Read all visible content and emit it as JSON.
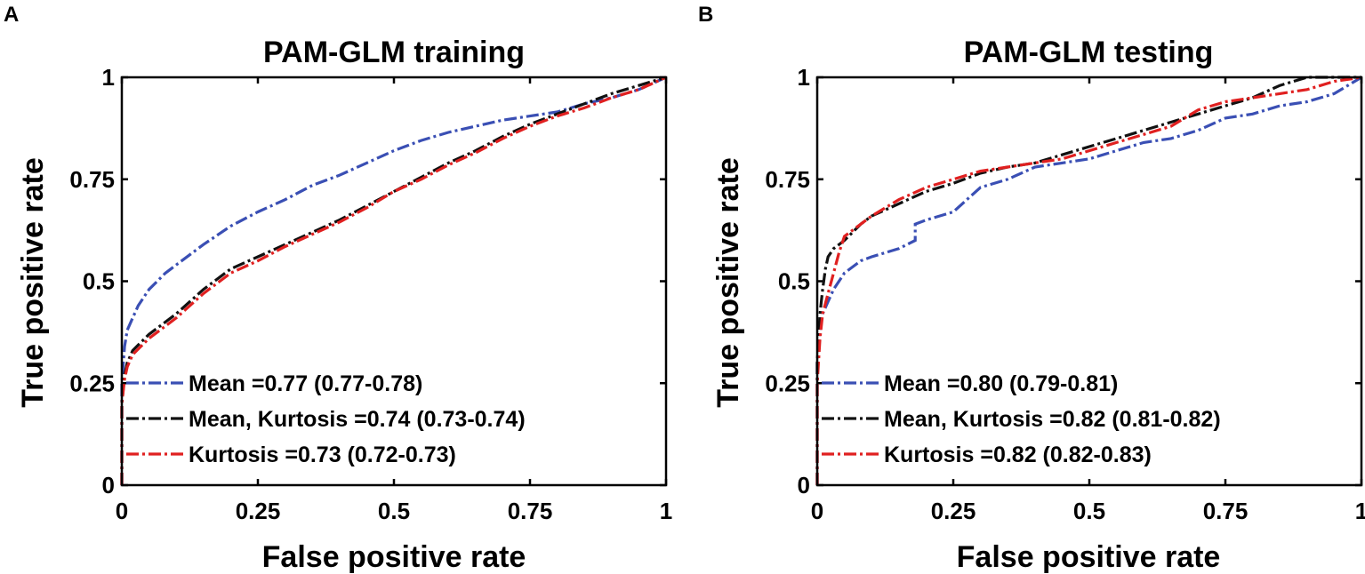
{
  "chart_data": [
    {
      "type": "line",
      "panel": "A",
      "title": "PAM-GLM training",
      "xlabel": "False positive rate",
      "ylabel": "True positive rate",
      "xlim": [
        0,
        1
      ],
      "ylim": [
        0,
        1
      ],
      "xticks": [
        0,
        0.25,
        0.5,
        0.75,
        1
      ],
      "xtick_labels": [
        "0",
        "0.25",
        "0.5",
        "0.75",
        "1"
      ],
      "yticks": [
        0,
        0.25,
        0.5,
        0.75,
        1
      ],
      "ytick_labels": [
        "0",
        "0.25",
        "0.5",
        "0.75",
        "1"
      ],
      "legend_position": "lower-left",
      "series": [
        {
          "name": "Mean =0.77 (0.77-0.78)",
          "color": "#3a4fb4",
          "x": [
            0,
            0,
            0.005,
            0.01,
            0.02,
            0.03,
            0.05,
            0.08,
            0.1,
            0.15,
            0.2,
            0.25,
            0.3,
            0.35,
            0.4,
            0.45,
            0.5,
            0.55,
            0.6,
            0.65,
            0.7,
            0.75,
            0.8,
            0.85,
            0.9,
            0.95,
            1
          ],
          "y": [
            0,
            0.25,
            0.34,
            0.38,
            0.41,
            0.44,
            0.48,
            0.52,
            0.54,
            0.59,
            0.635,
            0.67,
            0.7,
            0.735,
            0.76,
            0.79,
            0.82,
            0.845,
            0.865,
            0.88,
            0.895,
            0.905,
            0.915,
            0.935,
            0.95,
            0.97,
            1
          ]
        },
        {
          "name": "Mean, Kurtosis =0.74 (0.73-0.74)",
          "color": "#111111",
          "x": [
            0,
            0,
            0.005,
            0.01,
            0.02,
            0.05,
            0.08,
            0.1,
            0.15,
            0.2,
            0.25,
            0.3,
            0.35,
            0.4,
            0.45,
            0.5,
            0.55,
            0.6,
            0.65,
            0.7,
            0.75,
            0.8,
            0.85,
            0.9,
            0.95,
            1
          ],
          "y": [
            0,
            0.2,
            0.27,
            0.3,
            0.33,
            0.37,
            0.4,
            0.42,
            0.48,
            0.53,
            0.56,
            0.59,
            0.62,
            0.65,
            0.685,
            0.72,
            0.755,
            0.79,
            0.82,
            0.855,
            0.885,
            0.91,
            0.935,
            0.96,
            0.98,
            1
          ]
        },
        {
          "name": "Kurtosis =0.73 (0.72-0.73)",
          "color": "#e02020",
          "x": [
            0,
            0,
            0.005,
            0.01,
            0.02,
            0.05,
            0.08,
            0.1,
            0.15,
            0.2,
            0.25,
            0.3,
            0.35,
            0.4,
            0.45,
            0.5,
            0.55,
            0.6,
            0.65,
            0.7,
            0.75,
            0.8,
            0.85,
            0.9,
            0.95,
            1
          ],
          "y": [
            0,
            0.2,
            0.26,
            0.29,
            0.32,
            0.36,
            0.39,
            0.41,
            0.47,
            0.52,
            0.55,
            0.585,
            0.615,
            0.645,
            0.68,
            0.72,
            0.75,
            0.785,
            0.815,
            0.85,
            0.88,
            0.905,
            0.925,
            0.95,
            0.97,
            1
          ]
        }
      ]
    },
    {
      "type": "line",
      "panel": "B",
      "title": "PAM-GLM testing",
      "xlabel": "False positive rate",
      "ylabel": "True positive rate",
      "xlim": [
        0,
        1
      ],
      "ylim": [
        0,
        1
      ],
      "xticks": [
        0,
        0.25,
        0.5,
        0.75,
        1
      ],
      "xtick_labels": [
        "0",
        "0.25",
        "0.5",
        "0.75",
        "1"
      ],
      "yticks": [
        0,
        0.25,
        0.5,
        0.75,
        1
      ],
      "ytick_labels": [
        "0",
        "0.25",
        "0.5",
        "0.75",
        "1"
      ],
      "legend_position": "lower-left",
      "series": [
        {
          "name": "Mean =0.80 (0.79-0.81)",
          "color": "#3a4fb4",
          "x": [
            0,
            0,
            0.005,
            0.01,
            0.02,
            0.03,
            0.05,
            0.08,
            0.1,
            0.15,
            0.18,
            0.18,
            0.2,
            0.25,
            0.3,
            0.35,
            0.4,
            0.45,
            0.5,
            0.55,
            0.6,
            0.65,
            0.7,
            0.75,
            0.8,
            0.85,
            0.9,
            0.95,
            1
          ],
          "y": [
            0,
            0.3,
            0.38,
            0.42,
            0.45,
            0.48,
            0.52,
            0.55,
            0.56,
            0.58,
            0.6,
            0.64,
            0.65,
            0.67,
            0.73,
            0.75,
            0.78,
            0.79,
            0.8,
            0.82,
            0.84,
            0.85,
            0.87,
            0.9,
            0.91,
            0.93,
            0.94,
            0.96,
            1
          ]
        },
        {
          "name": "Mean, Kurtosis =0.82 (0.81-0.82)",
          "color": "#111111",
          "x": [
            0,
            0,
            0.005,
            0.01,
            0.015,
            0.02,
            0.03,
            0.05,
            0.08,
            0.1,
            0.15,
            0.2,
            0.25,
            0.3,
            0.35,
            0.4,
            0.45,
            0.5,
            0.55,
            0.6,
            0.65,
            0.7,
            0.75,
            0.8,
            0.85,
            0.9,
            0.95,
            1
          ],
          "y": [
            0,
            0.3,
            0.42,
            0.48,
            0.53,
            0.56,
            0.58,
            0.6,
            0.64,
            0.66,
            0.69,
            0.72,
            0.74,
            0.765,
            0.78,
            0.79,
            0.81,
            0.83,
            0.85,
            0.87,
            0.89,
            0.91,
            0.93,
            0.95,
            0.98,
            1,
            1,
            1
          ]
        },
        {
          "name": "Kurtosis =0.82 (0.82-0.83)",
          "color": "#e02020",
          "x": [
            0,
            0,
            0.005,
            0.01,
            0.02,
            0.03,
            0.04,
            0.05,
            0.08,
            0.1,
            0.15,
            0.2,
            0.25,
            0.3,
            0.35,
            0.4,
            0.45,
            0.5,
            0.55,
            0.6,
            0.65,
            0.7,
            0.75,
            0.8,
            0.85,
            0.9,
            0.95,
            1
          ],
          "y": [
            0,
            0.25,
            0.36,
            0.42,
            0.47,
            0.52,
            0.57,
            0.61,
            0.64,
            0.66,
            0.7,
            0.73,
            0.75,
            0.77,
            0.78,
            0.79,
            0.8,
            0.82,
            0.84,
            0.86,
            0.88,
            0.92,
            0.94,
            0.95,
            0.96,
            0.97,
            0.99,
            1
          ]
        }
      ]
    }
  ]
}
